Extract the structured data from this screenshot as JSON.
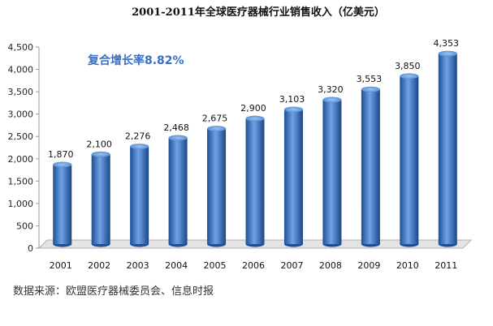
{
  "chart_data": {
    "type": "bar",
    "title": "2001-2011年全球医疗器械行业销售收入（亿美元）",
    "annotation": "复合增长率8.82%",
    "categories": [
      "2001",
      "2002",
      "2003",
      "2004",
      "2005",
      "2006",
      "2007",
      "2008",
      "2009",
      "2010",
      "2011"
    ],
    "values": [
      1870,
      2100,
      2276,
      2468,
      2675,
      2900,
      3103,
      3320,
      3553,
      3850,
      4353
    ],
    "value_labels": [
      "1,870",
      "2,100",
      "2,276",
      "2,468",
      "2,675",
      "2,900",
      "3,103",
      "3,320",
      "3,553",
      "3,850",
      "4,353"
    ],
    "ylim": [
      0,
      4500
    ],
    "yticks": [
      0,
      500,
      1000,
      1500,
      2000,
      2500,
      3000,
      3500,
      4000,
      4500
    ],
    "ytick_labels": [
      "0",
      "500",
      "1,000",
      "1,500",
      "2,000",
      "2,500",
      "3,000",
      "3,500",
      "4,000",
      "4,500"
    ],
    "grid": false,
    "bar_color": "#3d7cc9",
    "annotation_color": "#3a6fc4"
  },
  "source": "数据来源：欧盟医疗器械委员会、信息时报"
}
